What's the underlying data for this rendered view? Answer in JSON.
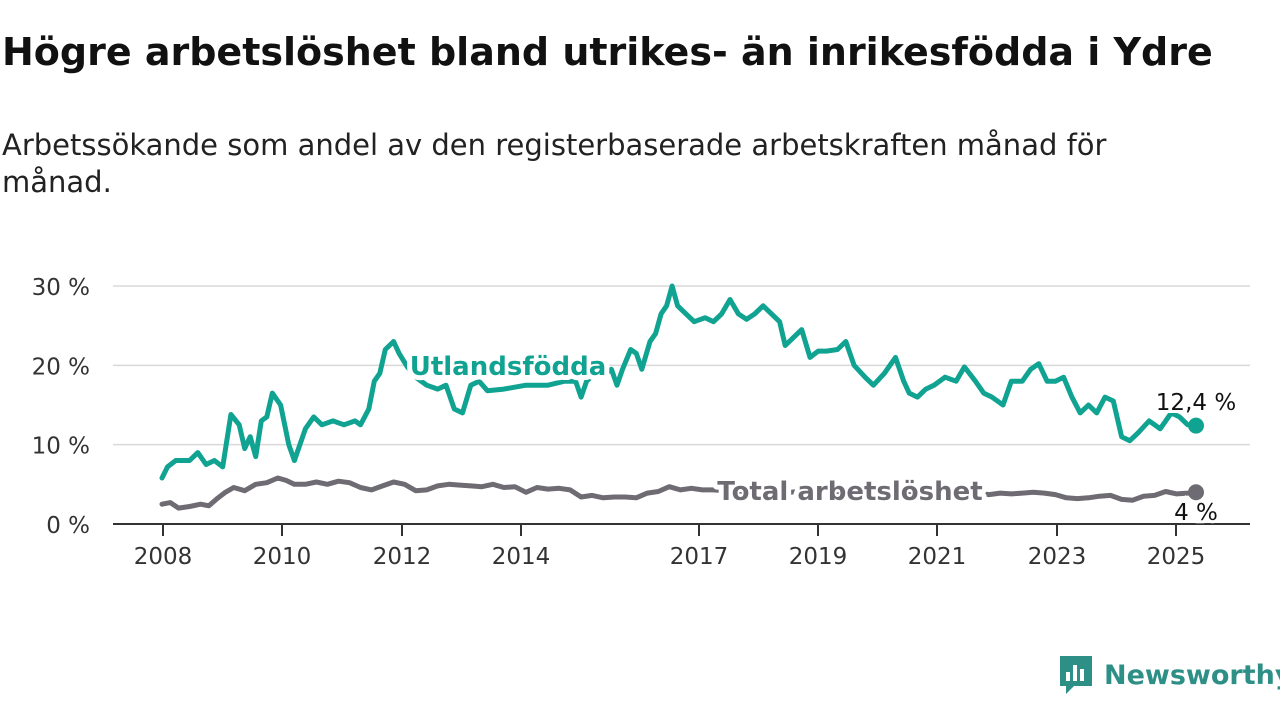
{
  "title": "Högre arbetslöshet bland utrikes- än inrikesfödda i Ydre",
  "subtitle": "Arbetssökande som andel av den registerbaserade arbetskraften månad för månad.",
  "brand": {
    "name": "Newsworthy",
    "icon": "newsworthy-logo-icon",
    "color": "#2e8f86"
  },
  "colors": {
    "foreign": "#11a391",
    "total": "#6e6b73",
    "grid": "#d9d9d9",
    "axis": "#333333"
  },
  "chart_data": {
    "type": "line",
    "xlim": [
      2008,
      2025.7
    ],
    "ylim": [
      0,
      30
    ],
    "y_ticks": [
      0,
      10,
      20,
      30
    ],
    "y_tick_labels": [
      "0 %",
      "10 %",
      "20 %",
      "30 %"
    ],
    "x_ticks": [
      2008,
      2010,
      2012,
      2014,
      2017,
      2019,
      2021,
      2023,
      2025
    ],
    "x_tick_labels": [
      "2008",
      "2010",
      "2012",
      "2014",
      "2017",
      "2019",
      "2021",
      "2023",
      "2025"
    ],
    "grid": true,
    "series": [
      {
        "name": "Utlandsfödda",
        "color_key": "foreign",
        "end_label": "12,4 %",
        "points": [
          [
            2008.0,
            5.8
          ],
          [
            2008.1,
            7.2
          ],
          [
            2008.25,
            8.0
          ],
          [
            2008.5,
            8.0
          ],
          [
            2008.65,
            9.0
          ],
          [
            2008.8,
            7.5
          ],
          [
            2008.95,
            8.0
          ],
          [
            2009.1,
            7.2
          ],
          [
            2009.25,
            13.8
          ],
          [
            2009.4,
            12.5
          ],
          [
            2009.5,
            9.5
          ],
          [
            2009.6,
            11.0
          ],
          [
            2009.7,
            8.5
          ],
          [
            2009.8,
            13.0
          ],
          [
            2009.9,
            13.5
          ],
          [
            2010.0,
            16.5
          ],
          [
            2010.15,
            15.0
          ],
          [
            2010.3,
            10.0
          ],
          [
            2010.4,
            8.0
          ],
          [
            2010.6,
            12.0
          ],
          [
            2010.75,
            13.5
          ],
          [
            2010.9,
            12.5
          ],
          [
            2011.1,
            13.0
          ],
          [
            2011.3,
            12.5
          ],
          [
            2011.5,
            13.0
          ],
          [
            2011.6,
            12.5
          ],
          [
            2011.75,
            14.5
          ],
          [
            2011.85,
            18.0
          ],
          [
            2011.95,
            19.0
          ],
          [
            2012.05,
            22.0
          ],
          [
            2012.2,
            23.0
          ],
          [
            2012.3,
            21.5
          ],
          [
            2012.45,
            19.8
          ],
          [
            2012.6,
            18.5
          ],
          [
            2012.8,
            17.5
          ],
          [
            2013.0,
            17.0
          ],
          [
            2013.15,
            17.5
          ],
          [
            2013.3,
            14.5
          ],
          [
            2013.45,
            14.0
          ],
          [
            2013.6,
            17.5
          ],
          [
            2013.75,
            18.0
          ],
          [
            2013.9,
            16.8
          ],
          [
            2014.2,
            17.0
          ],
          [
            2014.6,
            17.5
          ],
          [
            2015.0,
            17.5
          ],
          [
            2015.3,
            18.0
          ],
          [
            2015.5,
            18.0
          ],
          [
            2015.6,
            16.0
          ],
          [
            2015.7,
            18.0
          ],
          [
            2015.85,
            19.0
          ],
          [
            2015.95,
            20.2
          ],
          [
            2016.05,
            19.0
          ],
          [
            2016.15,
            19.5
          ],
          [
            2016.25,
            17.5
          ],
          [
            2016.35,
            19.5
          ],
          [
            2016.5,
            22.0
          ],
          [
            2016.6,
            21.5
          ],
          [
            2016.7,
            19.5
          ],
          [
            2016.85,
            23.0
          ],
          [
            2016.95,
            24.0
          ],
          [
            2017.05,
            26.5
          ],
          [
            2017.15,
            27.5
          ],
          [
            2017.25,
            30.0
          ],
          [
            2017.35,
            27.5
          ],
          [
            2017.5,
            26.5
          ],
          [
            2017.65,
            25.5
          ],
          [
            2017.85,
            26.0
          ],
          [
            2018.0,
            25.5
          ],
          [
            2018.15,
            26.5
          ],
          [
            2018.3,
            28.3
          ],
          [
            2018.45,
            26.5
          ],
          [
            2018.6,
            25.8
          ],
          [
            2018.75,
            26.5
          ],
          [
            2018.9,
            27.5
          ],
          [
            2019.05,
            26.5
          ],
          [
            2019.2,
            25.5
          ],
          [
            2019.3,
            22.5
          ],
          [
            2019.45,
            23.5
          ],
          [
            2019.6,
            24.5
          ],
          [
            2019.75,
            21.0
          ],
          [
            2019.9,
            21.8
          ],
          [
            2020.05,
            21.8
          ],
          [
            2020.25,
            22.0
          ],
          [
            2020.4,
            23.0
          ],
          [
            2020.55,
            20.0
          ],
          [
            2020.75,
            18.5
          ],
          [
            2020.9,
            17.5
          ],
          [
            2021.1,
            19.0
          ],
          [
            2021.3,
            21.0
          ],
          [
            2021.45,
            18.0
          ],
          [
            2021.55,
            16.5
          ],
          [
            2021.7,
            16.0
          ],
          [
            2021.85,
            17.0
          ],
          [
            2022.0,
            17.5
          ],
          [
            2022.2,
            18.5
          ],
          [
            2022.4,
            18.0
          ],
          [
            2022.55,
            19.8
          ],
          [
            2022.75,
            18.0
          ],
          [
            2022.9,
            16.5
          ],
          [
            2023.05,
            16.0
          ],
          [
            2023.25,
            15.0
          ],
          [
            2023.4,
            18.0
          ],
          [
            2023.6,
            18.0
          ],
          [
            2023.75,
            19.5
          ],
          [
            2023.9,
            20.2
          ],
          [
            2024.05,
            18.0
          ],
          [
            2024.2,
            18.0
          ],
          [
            2024.35,
            18.5
          ],
          [
            2024.5,
            16.0
          ],
          [
            2024.65,
            14.0
          ],
          [
            2024.8,
            15.0
          ],
          [
            2024.95,
            14.0
          ],
          [
            2025.1,
            16.0
          ],
          [
            2025.25,
            15.5
          ],
          [
            2025.4,
            11.0
          ],
          [
            2025.55,
            10.5
          ],
          [
            2025.7,
            11.5
          ],
          [
            2025.9,
            13.0
          ],
          [
            2026.1,
            12.0
          ],
          [
            2026.3,
            14.0
          ],
          [
            2026.45,
            13.5
          ],
          [
            2026.6,
            12.5
          ],
          [
            2026.75,
            12.4
          ]
        ]
      },
      {
        "name": "Total arbetslöshet",
        "color_key": "total",
        "end_label": "4 %",
        "points": [
          [
            2008.0,
            2.5
          ],
          [
            2008.15,
            2.7
          ],
          [
            2008.3,
            2.0
          ],
          [
            2008.5,
            2.2
          ],
          [
            2008.7,
            2.5
          ],
          [
            2008.85,
            2.3
          ],
          [
            2009.0,
            3.2
          ],
          [
            2009.15,
            4.0
          ],
          [
            2009.3,
            4.6
          ],
          [
            2009.5,
            4.2
          ],
          [
            2009.7,
            5.0
          ],
          [
            2009.9,
            5.2
          ],
          [
            2010.1,
            5.8
          ],
          [
            2010.25,
            5.5
          ],
          [
            2010.4,
            5.0
          ],
          [
            2010.6,
            5.0
          ],
          [
            2010.8,
            5.3
          ],
          [
            2011.0,
            5.0
          ],
          [
            2011.2,
            5.4
          ],
          [
            2011.4,
            5.2
          ],
          [
            2011.6,
            4.6
          ],
          [
            2011.8,
            4.3
          ],
          [
            2012.0,
            4.8
          ],
          [
            2012.2,
            5.3
          ],
          [
            2012.4,
            5.0
          ],
          [
            2012.6,
            4.2
          ],
          [
            2012.8,
            4.3
          ],
          [
            2013.0,
            4.8
          ],
          [
            2013.2,
            5.0
          ],
          [
            2013.4,
            4.9
          ],
          [
            2013.6,
            4.8
          ],
          [
            2013.8,
            4.7
          ],
          [
            2014.0,
            5.0
          ],
          [
            2014.2,
            4.6
          ],
          [
            2014.4,
            4.7
          ],
          [
            2014.6,
            4.0
          ],
          [
            2014.8,
            4.6
          ],
          [
            2015.0,
            4.4
          ],
          [
            2015.2,
            4.5
          ],
          [
            2015.4,
            4.3
          ],
          [
            2015.6,
            3.4
          ],
          [
            2015.8,
            3.6
          ],
          [
            2016.0,
            3.3
          ],
          [
            2016.2,
            3.4
          ],
          [
            2016.4,
            3.4
          ],
          [
            2016.6,
            3.3
          ],
          [
            2016.8,
            3.9
          ],
          [
            2017.0,
            4.1
          ],
          [
            2017.2,
            4.7
          ],
          [
            2017.4,
            4.3
          ],
          [
            2017.6,
            4.5
          ],
          [
            2017.8,
            4.3
          ],
          [
            2018.0,
            4.3
          ],
          [
            2018.2,
            4.2
          ],
          [
            2018.4,
            4.2
          ],
          [
            2018.6,
            4.1
          ],
          [
            2018.8,
            4.3
          ],
          [
            2019.0,
            4.2
          ],
          [
            2019.2,
            4.0
          ],
          [
            2019.4,
            4.0
          ],
          [
            2019.6,
            4.2
          ],
          [
            2019.8,
            4.0
          ],
          [
            2020.0,
            4.0
          ],
          [
            2020.2,
            4.1
          ],
          [
            2020.4,
            4.0
          ],
          [
            2020.6,
            4.0
          ],
          [
            2020.8,
            3.9
          ],
          [
            2021.0,
            4.0
          ],
          [
            2021.2,
            4.1
          ],
          [
            2021.4,
            4.0
          ],
          [
            2021.6,
            3.9
          ],
          [
            2021.8,
            3.9
          ],
          [
            2022.0,
            4.0
          ],
          [
            2022.2,
            3.9
          ],
          [
            2022.4,
            3.9
          ],
          [
            2022.6,
            4.0
          ],
          [
            2022.8,
            3.9
          ],
          [
            2023.0,
            3.7
          ],
          [
            2023.2,
            3.9
          ],
          [
            2023.4,
            3.8
          ],
          [
            2023.6,
            3.9
          ],
          [
            2023.8,
            4.0
          ],
          [
            2024.0,
            3.9
          ],
          [
            2024.2,
            3.7
          ],
          [
            2024.4,
            3.3
          ],
          [
            2024.6,
            3.2
          ],
          [
            2024.8,
            3.3
          ],
          [
            2025.0,
            3.5
          ],
          [
            2025.2,
            3.6
          ],
          [
            2025.4,
            3.1
          ],
          [
            2025.6,
            3.0
          ],
          [
            2025.8,
            3.5
          ],
          [
            2026.0,
            3.6
          ],
          [
            2026.2,
            4.1
          ],
          [
            2026.4,
            3.8
          ],
          [
            2026.6,
            3.9
          ],
          [
            2026.75,
            4.0
          ]
        ]
      }
    ],
    "annotations": [
      {
        "text": "Utlandsfödda",
        "series": "Utlandsfödda",
        "x": 2012.9,
        "y": 20.0
      },
      {
        "text": "Total arbetslöshet",
        "series": "Total arbetslöshet",
        "x": 2019.9,
        "y": 4.0
      }
    ]
  }
}
